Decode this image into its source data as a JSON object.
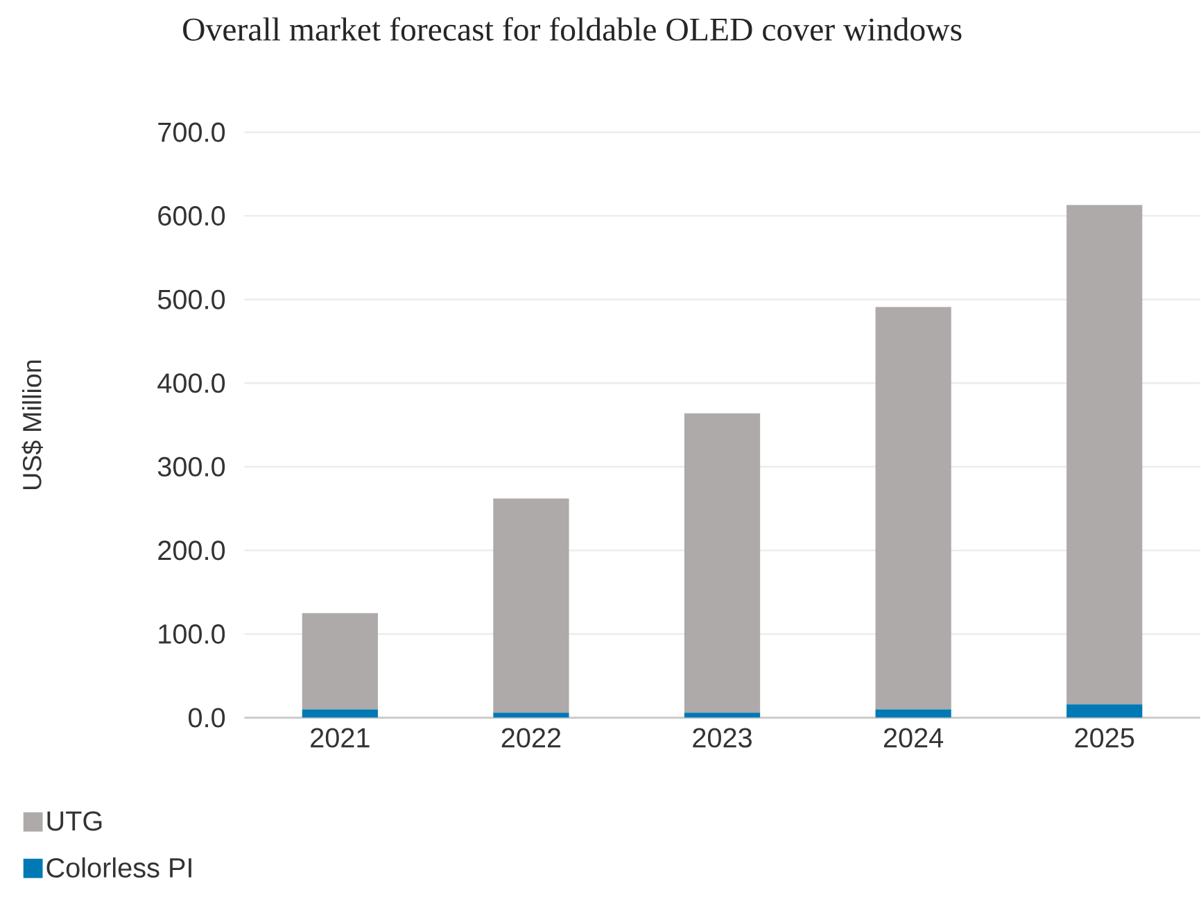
{
  "chart_data": {
    "type": "bar",
    "title": "Overall market forecast for foldable OLED cover windows",
    "ylabel": "US$ Million",
    "categories": [
      "2021",
      "2022",
      "2023",
      "2024",
      "2025"
    ],
    "stacked": true,
    "series": [
      {
        "name": "Colorless PI",
        "color": "#0079b5",
        "values": [
          10,
          6,
          6,
          10,
          16
        ]
      },
      {
        "name": "UTG",
        "color": "#aeaaa9",
        "values": [
          115,
          256,
          358,
          481,
          597
        ]
      }
    ],
    "ylim": [
      0,
      700
    ],
    "yticks": [
      {
        "value": 0,
        "label": "0.0"
      },
      {
        "value": 100,
        "label": "100.0"
      },
      {
        "value": 200,
        "label": "200.0"
      },
      {
        "value": 300,
        "label": "300.0"
      },
      {
        "value": 400,
        "label": "400.0"
      },
      {
        "value": 500,
        "label": "500.0"
      },
      {
        "value": 600,
        "label": "600.0"
      },
      {
        "value": 700,
        "label": "700.0"
      }
    ],
    "grid": "y",
    "legend": "bottom left"
  }
}
